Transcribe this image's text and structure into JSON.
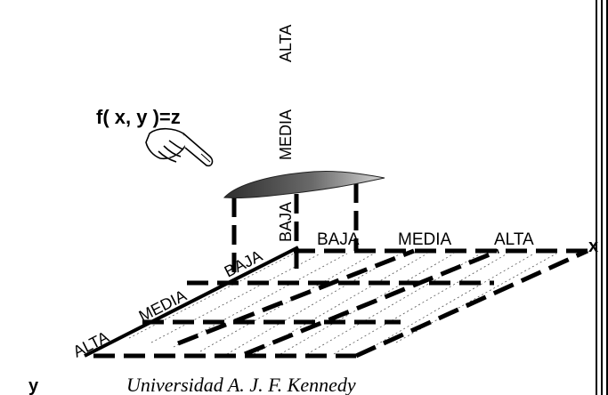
{
  "formula": "f( x, y )=z",
  "z_axis": {
    "labels": [
      "BAJA",
      "MEDIA",
      "ALTA"
    ]
  },
  "x_axis": {
    "name": "x",
    "labels": [
      "BAJA",
      "MEDIA",
      "ALTA"
    ]
  },
  "y_axis": {
    "name": "y",
    "labels": [
      "BAJA",
      "MEDIA",
      "ALTA"
    ]
  },
  "footer": "Universidad A. J. F. Kennedy",
  "icons": {
    "pointer": "pointing-hand-icon",
    "surface": "fuzzy-surface-patch"
  },
  "colors": {
    "ink": "#000000",
    "surface_dark": "#3a3a3a",
    "surface_light": "#bdbdbd",
    "frame": "#000000"
  }
}
